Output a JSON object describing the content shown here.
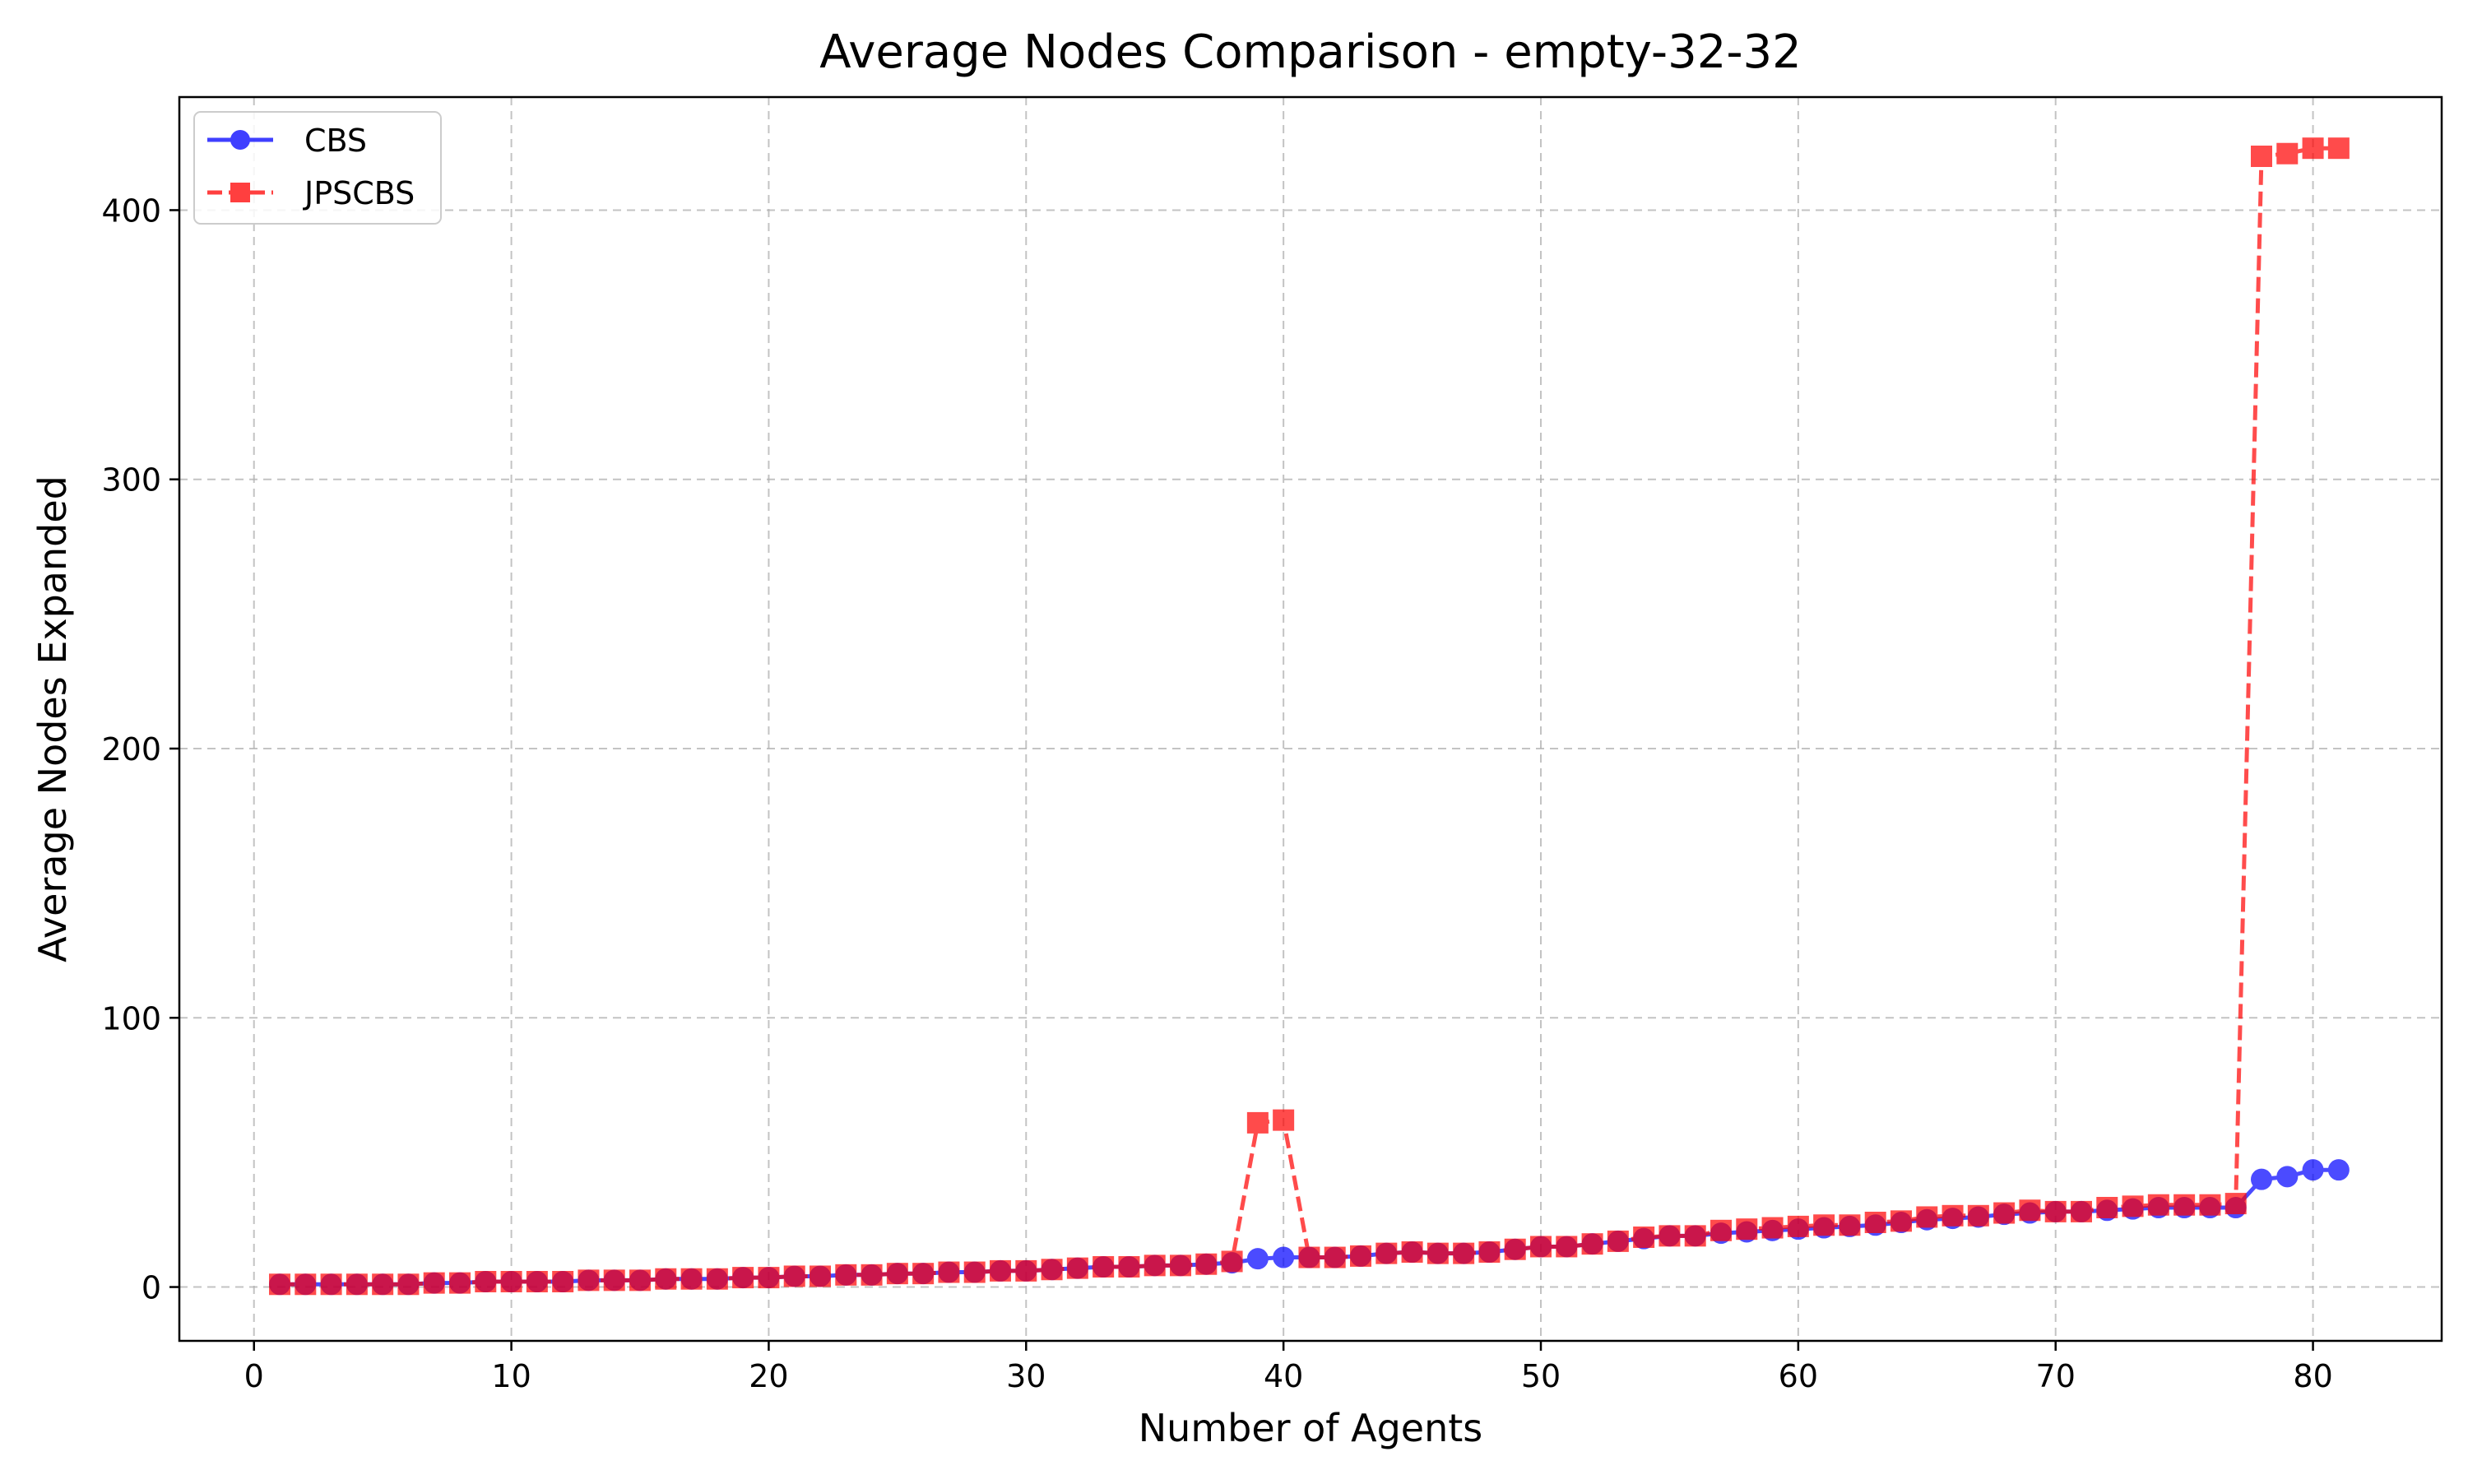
{
  "chart_data": {
    "type": "line",
    "title": "Average Nodes Comparison - empty-32-32",
    "xlabel": "Number of Agents",
    "ylabel": "Average Nodes Expanded",
    "xlim": [
      -2.9,
      85
    ],
    "ylim": [
      -20,
      442
    ],
    "xticks": [
      0,
      10,
      20,
      30,
      40,
      50,
      60,
      70,
      80
    ],
    "yticks": [
      0,
      100,
      200,
      300,
      400
    ],
    "grid": true,
    "legend_position": "top-left",
    "x": [
      1,
      2,
      3,
      4,
      5,
      6,
      7,
      8,
      9,
      10,
      11,
      12,
      13,
      14,
      15,
      16,
      17,
      18,
      19,
      20,
      21,
      22,
      23,
      24,
      25,
      26,
      27,
      28,
      29,
      30,
      31,
      32,
      33,
      34,
      35,
      36,
      37,
      38,
      39,
      40,
      41,
      42,
      43,
      44,
      45,
      46,
      47,
      48,
      49,
      50,
      51,
      52,
      53,
      54,
      55,
      56,
      57,
      58,
      59,
      60,
      61,
      62,
      63,
      64,
      65,
      66,
      67,
      68,
      69,
      70,
      71,
      72,
      73,
      74,
      75,
      76,
      77,
      78,
      79,
      80,
      81
    ],
    "series": [
      {
        "name": "CBS",
        "color": "#0000ff",
        "marker": "circle",
        "linestyle": "solid",
        "values": [
          1,
          1,
          1,
          1,
          1,
          1,
          1.5,
          1.5,
          2,
          2,
          2,
          2,
          2.5,
          2.5,
          2.5,
          3,
          3,
          3,
          3.5,
          3.5,
          4,
          4,
          4.5,
          4.5,
          5,
          5,
          5.5,
          5.5,
          6,
          6,
          6.5,
          7,
          7.5,
          7.5,
          8,
          8,
          8.5,
          9,
          10.5,
          11,
          11,
          11,
          11.5,
          12.5,
          13,
          12.5,
          12.5,
          13,
          14,
          15,
          15,
          16,
          17,
          18,
          19,
          19,
          20,
          20.5,
          21,
          21.5,
          22,
          22.5,
          23,
          24,
          25,
          25.5,
          26,
          27,
          27.5,
          28,
          28,
          28.5,
          29,
          29.5,
          29.5,
          29.5,
          29.5,
          40,
          41,
          43.5,
          43.5
        ]
      },
      {
        "name": "JPSCBS",
        "color": "#ff0000",
        "marker": "square",
        "linestyle": "dashed",
        "values": [
          1,
          1,
          1,
          1,
          1,
          1,
          1.5,
          1.5,
          2,
          2,
          2,
          2,
          2.5,
          2.5,
          2.5,
          3,
          3,
          3,
          3.5,
          3.5,
          4,
          4,
          4.5,
          4.5,
          5,
          5,
          5.5,
          5.5,
          6,
          6,
          6.5,
          7,
          7.5,
          7.5,
          8,
          8,
          8.5,
          9.5,
          61,
          62,
          11,
          11,
          11.5,
          12.5,
          13,
          12.5,
          12.5,
          13,
          14,
          15,
          15,
          16,
          17,
          18.5,
          19,
          19,
          21,
          21.5,
          22,
          22.5,
          23,
          23,
          24,
          24.5,
          26,
          26.5,
          26.5,
          27.5,
          28.5,
          28,
          28,
          29.5,
          30,
          30.5,
          30.5,
          30.5,
          31,
          420,
          421,
          423,
          423
        ]
      }
    ]
  }
}
